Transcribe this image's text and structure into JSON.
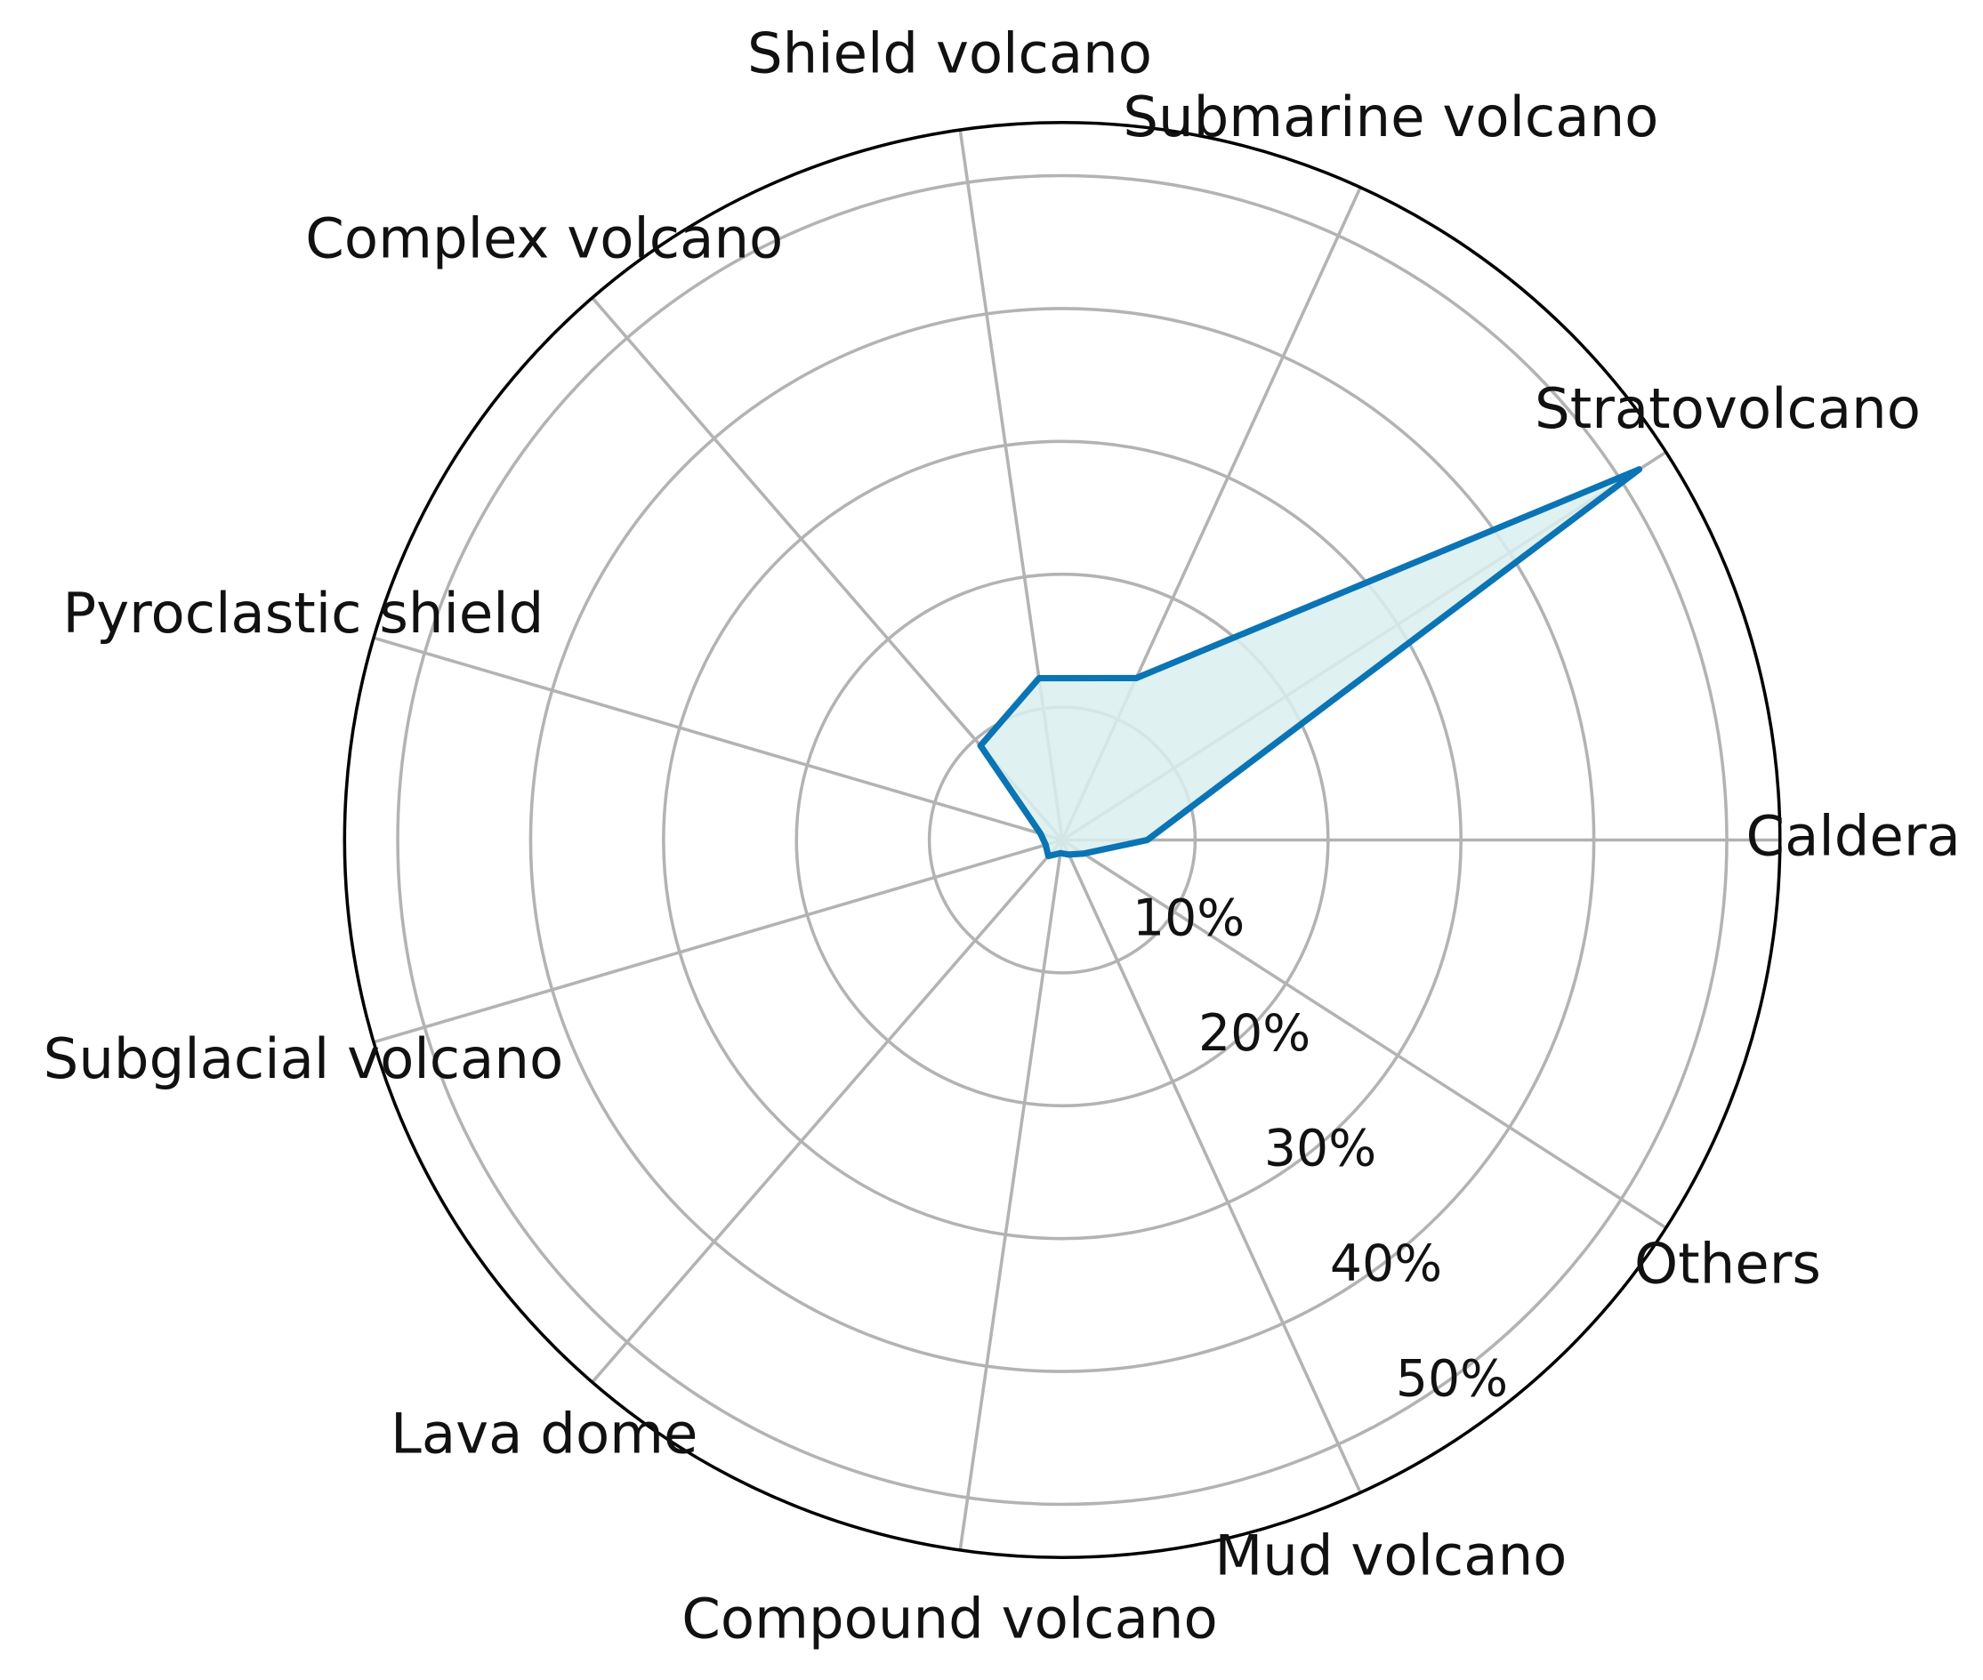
{
  "chart_data": {
    "type": "radar",
    "categories": [
      "Caldera",
      "Stratovolcano",
      "Submarine volcano",
      "Shield volcano",
      "Complex volcano",
      "Pyroclastic shield",
      "Subglacial volcano",
      "Lava dome",
      "Compound volcano",
      "Mud volcano",
      "Others"
    ],
    "series": [
      {
        "color": "#0a74b5",
        "fill": "#d9eeee",
        "values": [
          6.4,
          51.6,
          13.4,
          12.3,
          9.4,
          1.7,
          1.3,
          1.6,
          1.0,
          1.2,
          1.9
        ]
      }
    ],
    "ylim": [
      0,
      54
    ],
    "yticks": [
      {
        "value": 10,
        "label": "10%"
      },
      {
        "value": 20,
        "label": "20%"
      },
      {
        "value": 30,
        "label": "30%"
      },
      {
        "value": 40,
        "label": "40%"
      },
      {
        "value": 50,
        "label": "50%"
      }
    ],
    "grid": true
  }
}
